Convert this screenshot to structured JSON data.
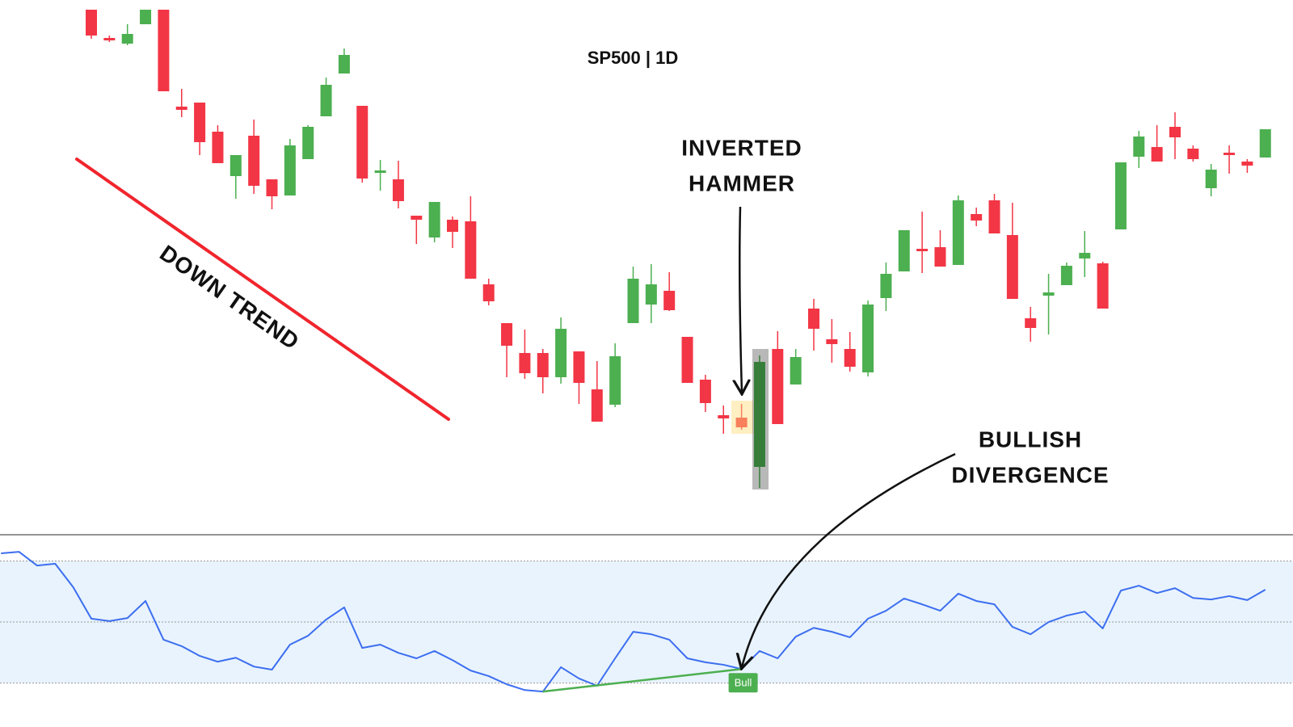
{
  "chart_data": [
    {
      "type": "candlestick",
      "title": "SP500 | 1D",
      "up_color": "#4caf50",
      "down_color": "#f23645",
      "ylim": [
        0,
        660
      ],
      "annotations": {
        "down_trend": "DOWN TREND",
        "inverted_hammer": [
          "INVERTED",
          "HAMMER"
        ]
      },
      "open": [
        648,
        613,
        606,
        630,
        648,
        528,
        533,
        497,
        442,
        492,
        438,
        418,
        463,
        516,
        569,
        529,
        446,
        438,
        393,
        366,
        388,
        386,
        308,
        260,
        223,
        223,
        193,
        225,
        178,
        159,
        260,
        283,
        300,
        243,
        190,
        146,
        143,
        82,
        228,
        184,
        278,
        240,
        228,
        199,
        291,
        324,
        352,
        354,
        332,
        395,
        412,
        369,
        266,
        294,
        307,
        340,
        334,
        376,
        466,
        478,
        503,
        476,
        427,
        471,
        460,
        465
      ],
      "high": [
        648,
        616,
        630,
        648,
        648,
        550,
        533,
        505,
        468,
        512,
        438,
        488,
        505,
        564,
        600,
        529,
        462,
        461,
        393,
        410,
        392,
        417,
        315,
        260,
        252,
        228,
        267,
        225,
        213,
        235,
        330,
        333,
        323,
        243,
        196,
        158,
        160,
        220,
        250,
        228,
        290,
        265,
        249,
        288,
        335,
        375,
        398,
        375,
        418,
        403,
        420,
        409,
        280,
        321,
        335,
        374,
        336,
        459,
        498,
        505,
        521,
        480,
        457,
        480,
        463,
        500
      ],
      "low": [
        612,
        608,
        604,
        630,
        547,
        515,
        468,
        458,
        414,
        420,
        401,
        418,
        463,
        516,
        569,
        434,
        424,
        402,
        358,
        360,
        353,
        315,
        282,
        193,
        191,
        173,
        185,
        160,
        138,
        156,
        260,
        260,
        275,
        186,
        150,
        123,
        128,
        56,
        135,
        184,
        226,
        211,
        200,
        194,
        275,
        324,
        322,
        330,
        332,
        380,
        371,
        290,
        237,
        246,
        307,
        317,
        278,
        376,
        452,
        460,
        463,
        460,
        417,
        445,
        446,
        465
      ],
      "close": [
        616,
        610,
        618,
        648,
        547,
        524,
        484,
        458,
        468,
        430,
        417,
        480,
        503,
        555,
        592,
        439,
        449,
        411,
        388,
        410,
        373,
        315,
        287,
        232,
        198,
        193,
        253,
        186,
        138,
        219,
        315,
        308,
        276,
        186,
        161,
        142,
        131,
        212,
        135,
        218,
        253,
        234,
        206,
        283,
        321,
        375,
        349,
        330,
        412,
        387,
        371,
        290,
        254,
        298,
        331,
        347,
        278,
        459,
        491,
        460,
        490,
        463,
        450,
        468,
        455,
        500
      ]
    },
    {
      "type": "line",
      "color": "#3d6ef0",
      "ylim": [
        15.6,
        78.6
      ],
      "levels": [
        30,
        50,
        70
      ],
      "level_fill": "#e8f3fd",
      "divergence_label": "Bull",
      "divergence_color": "#4caf50",
      "annotations": {
        "bullish_divergence": [
          "BULLISH",
          "DIVERGENCE"
        ]
      },
      "values": [
        72.5,
        73.0,
        68.5,
        69.1,
        61.4,
        51.1,
        50.3,
        51.3,
        56.9,
        44.2,
        42.1,
        38.9,
        37.0,
        38.3,
        35.4,
        34.4,
        42.6,
        45.5,
        50.8,
        54.8,
        41.5,
        42.6,
        39.9,
        38.1,
        40.5,
        37.5,
        34.1,
        32.3,
        29.6,
        27.7,
        27.2,
        35.2,
        31.5,
        29.1,
        38.1,
        46.8,
        46.0,
        44.2,
        38.1,
        36.8,
        36.0,
        34.6,
        40.5,
        38.1,
        45.2,
        48.1,
        46.8,
        45.0,
        51.1,
        53.7,
        57.7,
        55.8,
        53.7,
        59.3,
        56.9,
        55.8,
        48.4,
        46.0,
        50.0,
        52.1,
        53.4,
        47.9,
        60.3,
        61.9,
        59.5,
        61.1,
        57.9,
        57.4,
        58.5,
        57.2,
        60.6
      ]
    }
  ]
}
